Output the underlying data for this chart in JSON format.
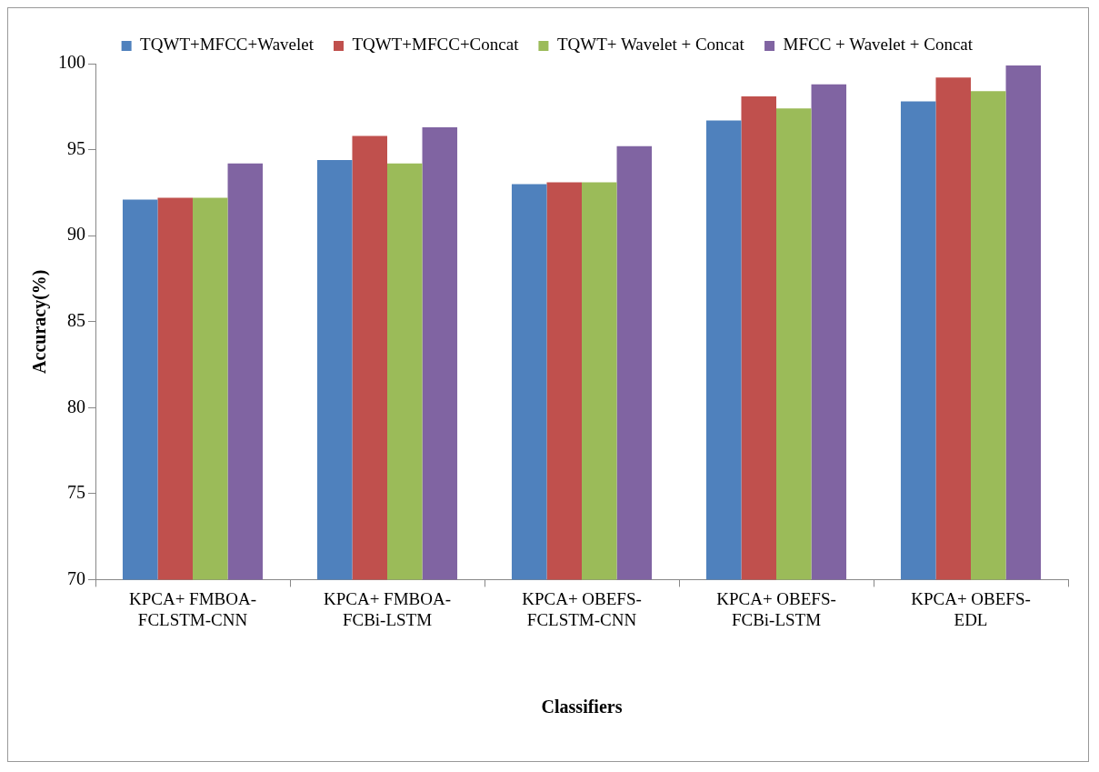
{
  "chart_data": {
    "type": "bar",
    "xlabel": "Classifiers",
    "ylabel": "Accuracy(%)",
    "categories": [
      "KPCA+ FMBOA-\nFCLSTM-CNN",
      "KPCA+ FMBOA-\nFCBi-LSTM",
      "KPCA+ OBEFS-\nFCLSTM-CNN",
      "KPCA+ OBEFS-\nFCBi-LSTM",
      "KPCA+ OBEFS-\nEDL"
    ],
    "series": [
      {
        "name": "TQWT+MFCC+Wavelet",
        "color": "#4f81bd",
        "values": [
          92.1,
          94.4,
          93.0,
          96.7,
          97.8
        ]
      },
      {
        "name": "TQWT+MFCC+Concat",
        "color": "#c0504d",
        "values": [
          92.2,
          95.8,
          93.1,
          98.1,
          99.2
        ]
      },
      {
        "name": "TQWT+ Wavelet + Concat",
        "color": "#9bbb59",
        "values": [
          92.2,
          94.2,
          93.1,
          97.4,
          98.4
        ]
      },
      {
        "name": "MFCC + Wavelet + Concat",
        "color": "#8064a2",
        "values": [
          94.2,
          96.3,
          95.2,
          98.8,
          99.9
        ]
      }
    ],
    "ylim": [
      70,
      100
    ],
    "yticks": [
      70,
      75,
      80,
      85,
      90,
      95,
      100
    ],
    "grid": false,
    "legend": "top"
  }
}
